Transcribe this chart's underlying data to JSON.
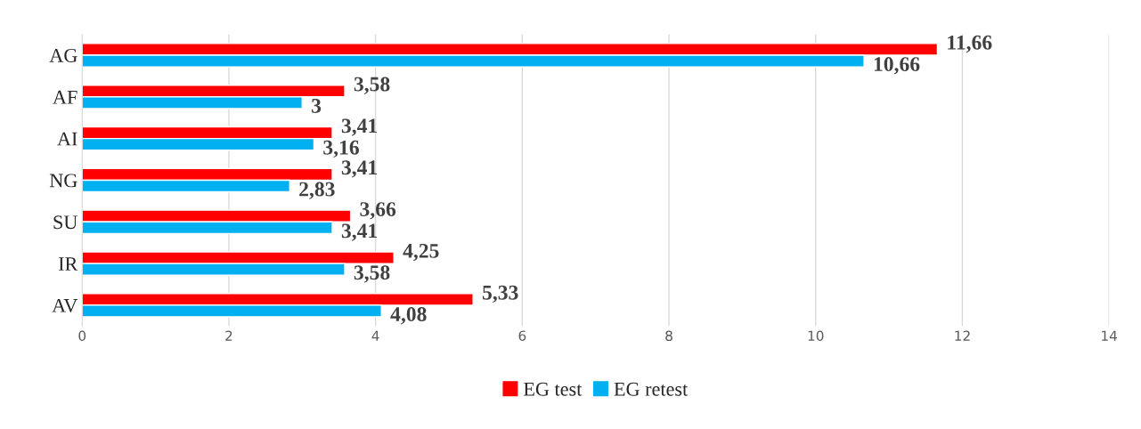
{
  "chart_data": {
    "type": "bar",
    "orientation": "horizontal",
    "categories": [
      "AG",
      "AF",
      "AI",
      "NG",
      "SU",
      "IR",
      "AV"
    ],
    "series": [
      {
        "name": "EG test",
        "color": "#ff0000",
        "values": [
          11.66,
          3.58,
          3.41,
          3.41,
          3.66,
          4.25,
          5.33
        ],
        "value_labels": [
          "11,66",
          "3,58",
          "3,41",
          "3,41",
          "3,66",
          "4,25",
          "5,33"
        ]
      },
      {
        "name": "EG retest",
        "color": "#00b0f0",
        "values": [
          10.66,
          3,
          3.16,
          2.83,
          3.41,
          3.58,
          4.08
        ],
        "value_labels": [
          "10,66",
          "3",
          "3,16",
          "2,83",
          "3,41",
          "3,58",
          "4,08"
        ]
      }
    ],
    "xlim": [
      0,
      14
    ],
    "xticks": [
      0,
      2,
      4,
      6,
      8,
      10,
      12,
      14
    ],
    "grid": "x",
    "legend": "bottom"
  }
}
